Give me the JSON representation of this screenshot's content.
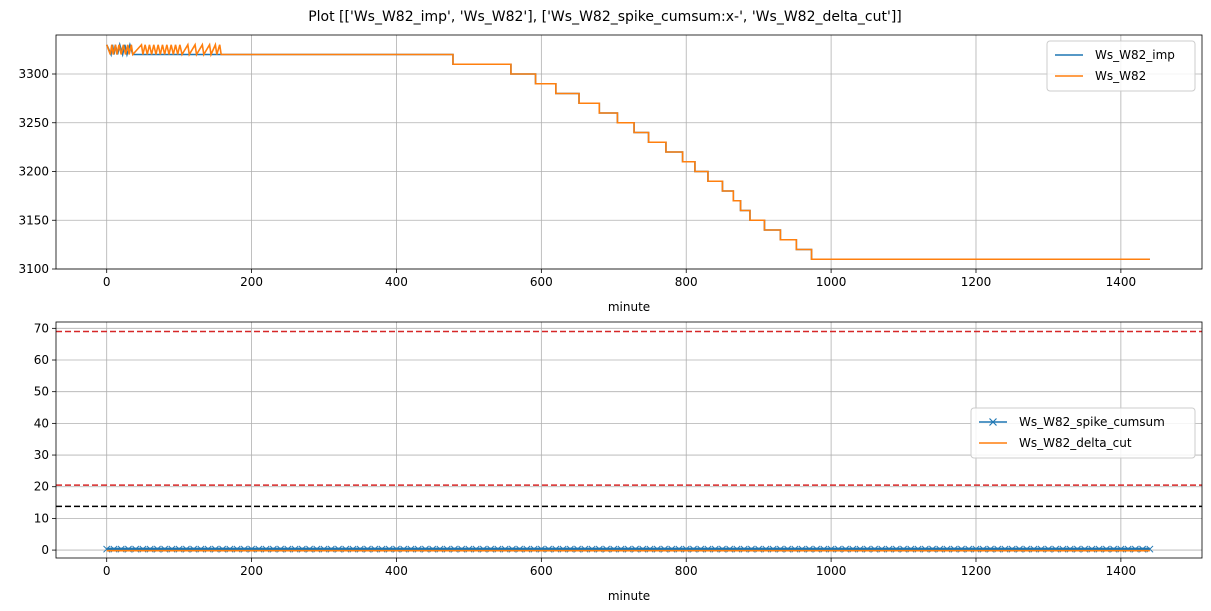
{
  "figure": {
    "title": "Plot [['Ws_W82_imp', 'Ws_W82'], ['Ws_W82_spike_cumsum:x-', 'Ws_W82_delta_cut']]"
  },
  "chart_data": [
    {
      "type": "line",
      "xlabel": "minute",
      "ylabel": "",
      "xlim": [
        -70,
        1512
      ],
      "ylim": [
        3100,
        3340
      ],
      "xticks": [
        0,
        200,
        400,
        600,
        800,
        1000,
        1200,
        1400
      ],
      "yticks": [
        3100,
        3150,
        3200,
        3250,
        3300
      ],
      "grid": true,
      "legend_position": "top-right",
      "series": [
        {
          "name": "Ws_W82_imp",
          "color": "#1f77b4",
          "style": "step",
          "points": [
            [
              0,
              3330
            ],
            [
              6,
              3320
            ],
            [
              8,
              3330
            ],
            [
              10,
              3320
            ],
            [
              12,
              3330
            ],
            [
              15,
              3320
            ],
            [
              18,
              3330
            ],
            [
              22,
              3320
            ],
            [
              25,
              3330
            ],
            [
              28,
              3320
            ],
            [
              32,
              3330
            ],
            [
              36,
              3320
            ],
            [
              300,
              3320
            ],
            [
              478,
              3320
            ],
            [
              478,
              3310
            ],
            [
              558,
              3310
            ],
            [
              558,
              3300
            ],
            [
              592,
              3300
            ],
            [
              592,
              3290
            ],
            [
              620,
              3290
            ],
            [
              620,
              3280
            ],
            [
              652,
              3280
            ],
            [
              652,
              3270
            ],
            [
              680,
              3270
            ],
            [
              680,
              3260
            ],
            [
              705,
              3260
            ],
            [
              705,
              3250
            ],
            [
              728,
              3250
            ],
            [
              728,
              3240
            ],
            [
              748,
              3240
            ],
            [
              748,
              3230
            ],
            [
              772,
              3230
            ],
            [
              772,
              3220
            ],
            [
              795,
              3220
            ],
            [
              795,
              3210
            ],
            [
              812,
              3210
            ],
            [
              812,
              3200
            ],
            [
              830,
              3200
            ],
            [
              830,
              3190
            ],
            [
              850,
              3190
            ],
            [
              850,
              3180
            ],
            [
              865,
              3180
            ],
            [
              865,
              3170
            ],
            [
              875,
              3170
            ],
            [
              875,
              3160
            ],
            [
              888,
              3160
            ],
            [
              888,
              3150
            ],
            [
              908,
              3150
            ],
            [
              908,
              3140
            ],
            [
              930,
              3140
            ],
            [
              930,
              3130
            ],
            [
              952,
              3130
            ],
            [
              952,
              3120
            ],
            [
              973,
              3120
            ],
            [
              973,
              3110
            ],
            [
              1440,
              3110
            ]
          ]
        },
        {
          "name": "Ws_W82",
          "color": "#ff7f0e",
          "style": "step",
          "points": [
            [
              0,
              3330
            ],
            [
              5,
              3320
            ],
            [
              7,
              3330
            ],
            [
              9,
              3320
            ],
            [
              12,
              3330
            ],
            [
              14,
              3320
            ],
            [
              17,
              3330
            ],
            [
              20,
              3320
            ],
            [
              23,
              3330
            ],
            [
              26,
              3320
            ],
            [
              29,
              3330
            ],
            [
              31,
              3320
            ],
            [
              34,
              3330
            ],
            [
              36,
              3320
            ],
            [
              48,
              3330
            ],
            [
              50,
              3320
            ],
            [
              53,
              3330
            ],
            [
              56,
              3320
            ],
            [
              59,
              3330
            ],
            [
              62,
              3320
            ],
            [
              65,
              3330
            ],
            [
              68,
              3320
            ],
            [
              71,
              3330
            ],
            [
              74,
              3320
            ],
            [
              77,
              3330
            ],
            [
              80,
              3320
            ],
            [
              83,
              3330
            ],
            [
              86,
              3320
            ],
            [
              89,
              3330
            ],
            [
              92,
              3320
            ],
            [
              95,
              3330
            ],
            [
              98,
              3320
            ],
            [
              101,
              3330
            ],
            [
              104,
              3320
            ],
            [
              112,
              3330
            ],
            [
              114,
              3320
            ],
            [
              122,
              3330
            ],
            [
              124,
              3320
            ],
            [
              132,
              3330
            ],
            [
              134,
              3320
            ],
            [
              142,
              3330
            ],
            [
              144,
              3320
            ],
            [
              150,
              3330
            ],
            [
              152,
              3320
            ],
            [
              156,
              3330
            ],
            [
              158,
              3320
            ],
            [
              478,
              3320
            ],
            [
              478,
              3310
            ],
            [
              558,
              3310
            ],
            [
              558,
              3300
            ],
            [
              592,
              3300
            ],
            [
              592,
              3290
            ],
            [
              620,
              3290
            ],
            [
              620,
              3280
            ],
            [
              652,
              3280
            ],
            [
              652,
              3270
            ],
            [
              680,
              3270
            ],
            [
              680,
              3260
            ],
            [
              705,
              3260
            ],
            [
              705,
              3250
            ],
            [
              728,
              3250
            ],
            [
              728,
              3240
            ],
            [
              748,
              3240
            ],
            [
              748,
              3230
            ],
            [
              772,
              3230
            ],
            [
              772,
              3220
            ],
            [
              795,
              3220
            ],
            [
              795,
              3210
            ],
            [
              812,
              3210
            ],
            [
              812,
              3200
            ],
            [
              830,
              3200
            ],
            [
              830,
              3190
            ],
            [
              850,
              3190
            ],
            [
              850,
              3180
            ],
            [
              865,
              3180
            ],
            [
              865,
              3170
            ],
            [
              875,
              3170
            ],
            [
              875,
              3160
            ],
            [
              888,
              3160
            ],
            [
              888,
              3150
            ],
            [
              908,
              3150
            ],
            [
              908,
              3140
            ],
            [
              930,
              3140
            ],
            [
              930,
              3130
            ],
            [
              952,
              3130
            ],
            [
              952,
              3120
            ],
            [
              973,
              3120
            ],
            [
              973,
              3110
            ],
            [
              1440,
              3110
            ]
          ]
        }
      ]
    },
    {
      "type": "line",
      "xlabel": "minute",
      "ylabel": "",
      "xlim": [
        -70,
        1512
      ],
      "ylim": [
        -2.5,
        72
      ],
      "xticks": [
        0,
        200,
        400,
        600,
        800,
        1000,
        1200,
        1400
      ],
      "yticks": [
        0,
        10,
        20,
        30,
        40,
        50,
        60,
        70
      ],
      "grid": true,
      "legend_position": "center-right",
      "series": [
        {
          "name": "Ws_W82_spike_cumsum",
          "color": "#1f77b4",
          "marker": "x",
          "points": [
            [
              0,
              0.3
            ],
            [
              1440,
              0.3
            ]
          ]
        },
        {
          "name": "Ws_W82_delta_cut",
          "color": "#ff7f0e",
          "points": [
            [
              0,
              -0.2
            ],
            [
              1440,
              -0.2
            ]
          ]
        }
      ],
      "hlines": [
        {
          "y": 69,
          "color": "#d62728",
          "style": "dashed"
        },
        {
          "y": 20.5,
          "color": "#d62728",
          "style": "dashed"
        },
        {
          "y": 13.8,
          "color": "#000000",
          "style": "dashed"
        }
      ]
    }
  ]
}
